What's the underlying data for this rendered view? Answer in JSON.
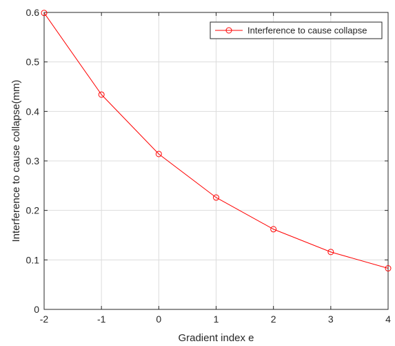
{
  "chart_data": {
    "type": "line",
    "title": "",
    "xlabel": "Gradient index e",
    "ylabel": "Interference to cause collapse(mm)",
    "xlim": [
      -2,
      4
    ],
    "ylim": [
      0,
      0.6
    ],
    "x_ticks": [
      -2,
      -1,
      0,
      1,
      2,
      3,
      4
    ],
    "y_ticks": [
      0,
      0.1,
      0.2,
      0.3,
      0.4,
      0.5,
      0.6
    ],
    "grid": true,
    "legend_position": "top-right",
    "series": [
      {
        "name": "Interference to cause collapse",
        "color": "#ff0000",
        "marker": "circle",
        "x": [
          -2,
          -1,
          0,
          1,
          2,
          3,
          4
        ],
        "y": [
          0.599,
          0.434,
          0.314,
          0.226,
          0.162,
          0.116,
          0.083
        ]
      }
    ]
  }
}
